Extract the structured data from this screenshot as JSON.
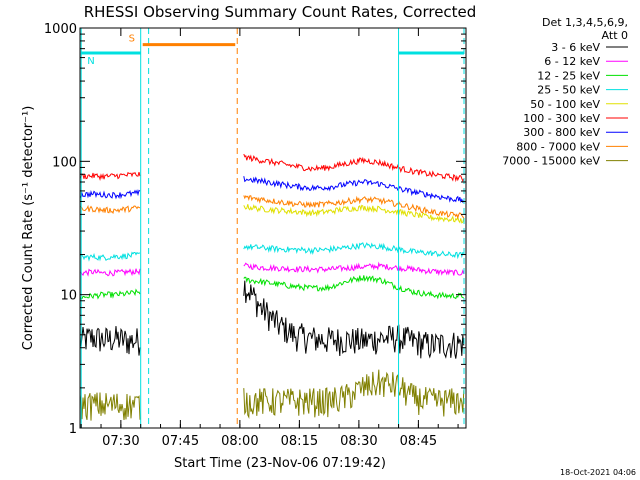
{
  "chart_data": {
    "type": "line",
    "title": "RHESSI Observing Summary Count Rates, Corrected",
    "xlabel": "Start Time (23-Nov-06 07:19:42)",
    "ylabel": "Corrected Count Rate (s⁻¹ detector⁻¹)",
    "yscale": "log",
    "ylim": [
      1,
      1000
    ],
    "xlim": [
      "07:19:42",
      "08:57:00"
    ],
    "x_ticks": [
      "07:30",
      "07:45",
      "08:00",
      "08:15",
      "08:30",
      "08:45"
    ],
    "y_ticks": [
      "1",
      "10",
      "100",
      "1000"
    ],
    "legend_header": [
      "Det 1,3,4,5,6,9,",
      "Att 0"
    ],
    "legend_position": "right",
    "grid": false,
    "footer_date": "18-Oct-2021 04:06",
    "flags": [
      {
        "label": "S",
        "color": "#ff8000",
        "start": "07:35:30",
        "end": "07:58:50",
        "value": 750
      },
      {
        "label": "N",
        "color": "#00e0e0",
        "start": "07:20:00",
        "end": "07:35:00",
        "value": 650
      },
      {
        "label": "",
        "color": "#00e0e0",
        "start": "08:40:00",
        "end": "08:56:30",
        "value": 650
      }
    ],
    "markers": [
      {
        "time": "07:20:00",
        "color": "#00e0e0",
        "style": "solid"
      },
      {
        "time": "07:37:00",
        "color": "#00e0e0",
        "style": "dashed"
      },
      {
        "time": "07:35:00",
        "color": "#00e0e0",
        "style": "solid"
      },
      {
        "time": "07:59:20",
        "color": "#ff8000",
        "style": "dashed"
      },
      {
        "time": "08:40:00",
        "color": "#00e0e0",
        "style": "solid"
      },
      {
        "time": "08:56:30",
        "color": "#00e0e0",
        "style": "dashed"
      }
    ],
    "segments": [
      {
        "start": "07:19:42",
        "end": "07:35:00"
      },
      {
        "start": "08:01:00",
        "end": "08:56:30"
      }
    ],
    "series": [
      {
        "name": "3 - 6 keV",
        "color": "#000000",
        "seg1": [
          4.5,
          4.8,
          4.6,
          4.7,
          4.5,
          4.6
        ],
        "seg2": [
          12,
          8,
          6,
          5,
          4.7,
          4.6,
          4.6,
          4.5,
          4.7,
          4.8,
          4.5,
          4.2,
          4.3,
          4.3
        ]
      },
      {
        "name": "6 - 12 keV",
        "color": "#ff00ff",
        "seg1": [
          14.5,
          14.8,
          14.5,
          14.6,
          14.8,
          15.0
        ],
        "seg2": [
          16.5,
          16.0,
          15.8,
          15.6,
          15.5,
          15.5,
          15.8,
          16.2,
          16.4,
          16.0,
          15.5,
          15.0,
          14.7,
          14.5
        ]
      },
      {
        "name": "12 - 25 keV",
        "color": "#00e000",
        "seg1": [
          9.5,
          9.8,
          10.0,
          10.0,
          10.2,
          10.5
        ],
        "seg2": [
          13.0,
          12.5,
          12.0,
          11.5,
          11.2,
          11.3,
          12.5,
          13.5,
          13.0,
          11.5,
          10.5,
          10.0,
          9.8,
          9.8
        ]
      },
      {
        "name": "25 - 50 keV",
        "color": "#00e0e0",
        "seg1": [
          19.0,
          19.2,
          19.0,
          19.4,
          19.6,
          20.0
        ],
        "seg2": [
          23.0,
          22.5,
          22.0,
          21.8,
          21.5,
          21.8,
          22.5,
          23.5,
          23.0,
          22.0,
          21.0,
          20.5,
          20.0,
          19.8
        ]
      },
      {
        "name": "50 - 100 keV",
        "color": "#e0e000",
        "seg1": [],
        "seg2": [
          46,
          44,
          43,
          42,
          41,
          42,
          44,
          45,
          44,
          42,
          40,
          38,
          37,
          36
        ]
      },
      {
        "name": "100 - 300 keV",
        "color": "#ff0000",
        "seg1": [
          77,
          78,
          77,
          78,
          79,
          80
        ],
        "seg2": [
          108,
          102,
          97,
          92,
          88,
          90,
          96,
          102,
          98,
          90,
          84,
          80,
          77,
          74
        ]
      },
      {
        "name": "300 - 800 keV",
        "color": "#0000ff",
        "seg1": [
          56,
          57,
          56,
          56,
          57,
          58
        ],
        "seg2": [
          74,
          71,
          68,
          65,
          63,
          64,
          67,
          70,
          68,
          63,
          59,
          56,
          53,
          51
        ]
      },
      {
        "name": "800 - 7000 keV",
        "color": "#ff8000",
        "seg1": [
          44,
          44,
          43,
          43,
          44,
          45
        ],
        "seg2": [
          54,
          52,
          50,
          48,
          47,
          48,
          50,
          52,
          51,
          48,
          45,
          42,
          40,
          39
        ]
      },
      {
        "name": "7000 - 15000 keV",
        "color": "#808000",
        "seg1": [
          1.5,
          1.5,
          1.5,
          1.5,
          1.5,
          1.5
        ],
        "seg2": [
          1.6,
          1.6,
          1.6,
          1.6,
          1.6,
          1.6,
          1.7,
          2.0,
          2.2,
          2.1,
          1.7,
          1.6,
          1.6,
          1.6
        ]
      }
    ]
  }
}
